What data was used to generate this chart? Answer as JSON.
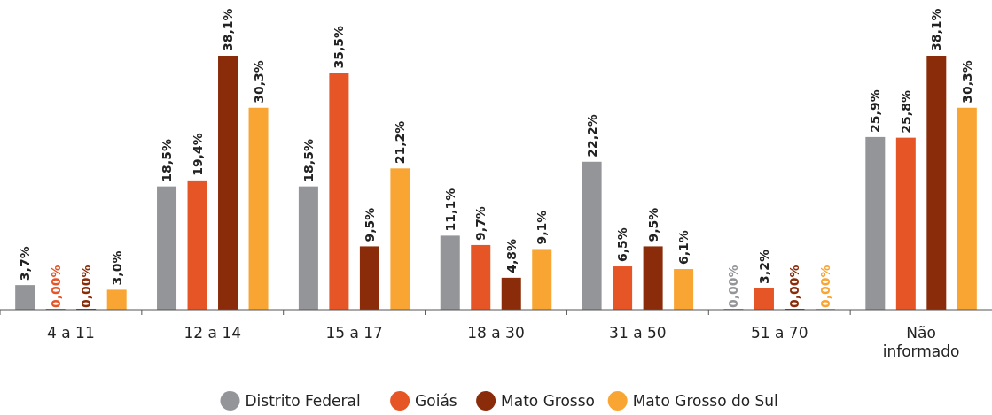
{
  "chart_data": {
    "type": "bar",
    "categories": [
      "4 a 11",
      "12 a 14",
      "15 a 17",
      "18 a 30",
      "31 a 50",
      "51 a 70",
      "Não informado"
    ],
    "series": [
      {
        "name": "Distrito Federal",
        "color": "#939598",
        "values": [
          3.7,
          18.5,
          18.5,
          11.1,
          22.2,
          0,
          25.9
        ],
        "value_labels": [
          "3,7%",
          "18,5%",
          "18,5%",
          "11,1%",
          "22,2%",
          "0,00%",
          "25,9%"
        ]
      },
      {
        "name": "Goiás",
        "color": "#e65525",
        "values": [
          0,
          19.4,
          35.5,
          9.7,
          6.5,
          3.2,
          25.8
        ],
        "value_labels": [
          "0,00%",
          "19,4%",
          "35,5%",
          "9,7%",
          "6,5%",
          "3,2%",
          "25,8%"
        ]
      },
      {
        "name": "Mato Grosso",
        "color": "#8a2c0a",
        "values": [
          0,
          38.1,
          9.5,
          4.8,
          9.5,
          0,
          38.1
        ],
        "value_labels": [
          "0,00%",
          "38,1%",
          "9,5%",
          "4,8%",
          "9,5%",
          "0,00%",
          "38,1%"
        ]
      },
      {
        "name": "Mato Grosso do Sul",
        "color": "#f9a533",
        "values": [
          3.0,
          30.3,
          21.2,
          9.1,
          6.1,
          0,
          30.3
        ],
        "value_labels": [
          "3,0%",
          "30,3%",
          "21,2%",
          "9,1%",
          "6,1%",
          "0,00%",
          "30,3%"
        ]
      }
    ],
    "legend": "bottom"
  }
}
